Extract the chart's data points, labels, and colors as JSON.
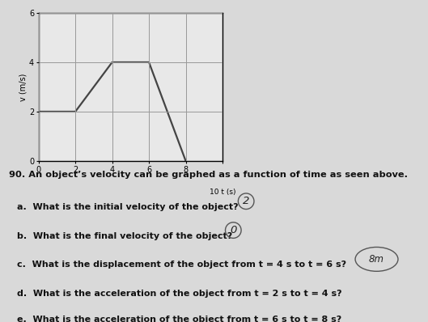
{
  "title": "",
  "xlabel": "10 t (s)",
  "ylabel": "v (m/s)",
  "x_data": [
    0,
    2,
    4,
    6,
    8
  ],
  "y_data": [
    2,
    2,
    4,
    4,
    0
  ],
  "xlim": [
    0,
    10
  ],
  "ylim": [
    0,
    6
  ],
  "xticks": [
    0,
    2,
    4,
    6,
    8,
    10
  ],
  "ytick_vals": [
    0,
    2,
    4,
    6
  ],
  "ytick_labels": [
    "0",
    "2",
    "4",
    "6"
  ],
  "xtick_labels": [
    "0",
    "2",
    "4",
    "6",
    "8",
    "10 t (s)"
  ],
  "line_color": "#444444",
  "line_width": 1.6,
  "grid_color": "#999999",
  "bg_color": "#e8e8e8",
  "page_color": "#d9d9d9",
  "text_color": "#111111",
  "questions": [
    "90. An object’s velocity can be graphed as a function of time as seen above.",
    "a.  What is the initial velocity of the object?",
    "b.  What is the final velocity of the object?",
    "c.  What is the displacement of the object from t = 4 s to t = 6 s?",
    "d.  What is the acceleration of the object from t = 2 s to t = 4 s?",
    "e.  What is the acceleration of the object from t = 6 s to t = 8 s?"
  ],
  "fig_width": 5.29,
  "fig_height": 3.98,
  "dpi": 100
}
